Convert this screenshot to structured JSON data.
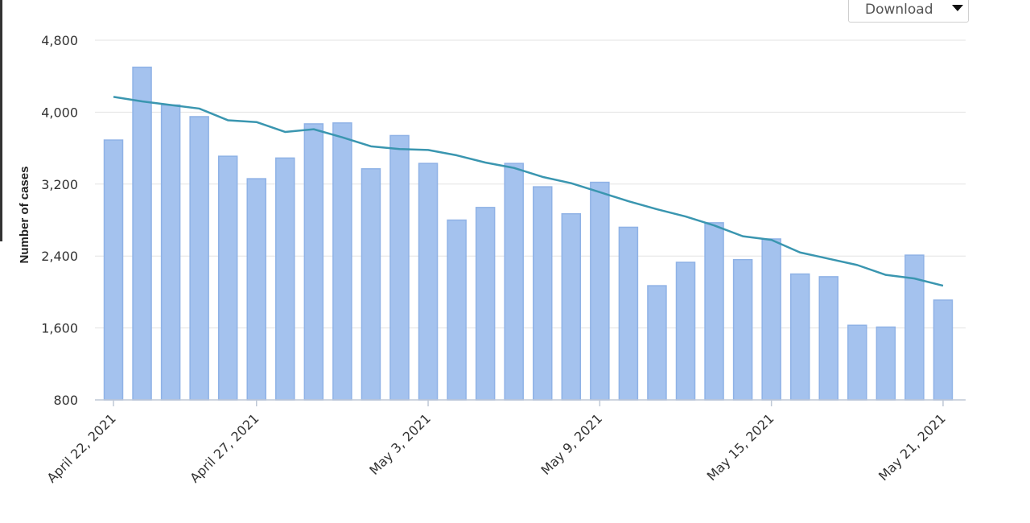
{
  "download": {
    "label": "Download",
    "icon": "caret-down-icon"
  },
  "chart_data": {
    "type": "bar",
    "ylabel": "Number of cases",
    "ylim": [
      800,
      4800
    ],
    "yticks": [
      800,
      1600,
      2400,
      3200,
      4000,
      4800
    ],
    "ytick_labels": [
      "800",
      "1,600",
      "2,400",
      "3,200",
      "4,000",
      "4,800"
    ],
    "x_tick_labels": [
      {
        "index": 0,
        "label": "April 22, 2021"
      },
      {
        "index": 5,
        "label": "April 27, 2021"
      },
      {
        "index": 11,
        "label": "May 3, 2021"
      },
      {
        "index": 17,
        "label": "May 9, 2021"
      },
      {
        "index": 23,
        "label": "May 15, 2021"
      },
      {
        "index": 29,
        "label": "May 21, 2021"
      }
    ],
    "categories": [
      "2021-04-22",
      "2021-04-23",
      "2021-04-24",
      "2021-04-25",
      "2021-04-26",
      "2021-04-27",
      "2021-04-28",
      "2021-04-29",
      "2021-04-30",
      "2021-05-01",
      "2021-05-02",
      "2021-05-03",
      "2021-05-04",
      "2021-05-05",
      "2021-05-06",
      "2021-05-07",
      "2021-05-08",
      "2021-05-09",
      "2021-05-10",
      "2021-05-11",
      "2021-05-12",
      "2021-05-13",
      "2021-05-14",
      "2021-05-15",
      "2021-05-16",
      "2021-05-17",
      "2021-05-18",
      "2021-05-19",
      "2021-05-20",
      "2021-05-21"
    ],
    "series": [
      {
        "type": "bar",
        "color": "#a4c2ee",
        "values": [
          3690,
          4500,
          4080,
          3950,
          3510,
          3260,
          3490,
          3870,
          3880,
          3370,
          3740,
          3430,
          2800,
          2940,
          3430,
          3170,
          2870,
          3220,
          2720,
          2070,
          2330,
          2770,
          2360,
          2590,
          2200,
          2170,
          1630,
          1610,
          2410,
          1910
        ]
      },
      {
        "type": "line",
        "color": "#3a96b0",
        "values": [
          4170,
          4120,
          4080,
          4040,
          3910,
          3890,
          3780,
          3810,
          3720,
          3620,
          3590,
          3580,
          3520,
          3440,
          3380,
          3280,
          3210,
          3110,
          3010,
          2920,
          2840,
          2740,
          2620,
          2580,
          2440,
          2370,
          2300,
          2190,
          2150,
          2070
        ]
      }
    ],
    "grid": true,
    "gridColor": "#e3e3e3",
    "axisColor": "#bfc8d6"
  }
}
